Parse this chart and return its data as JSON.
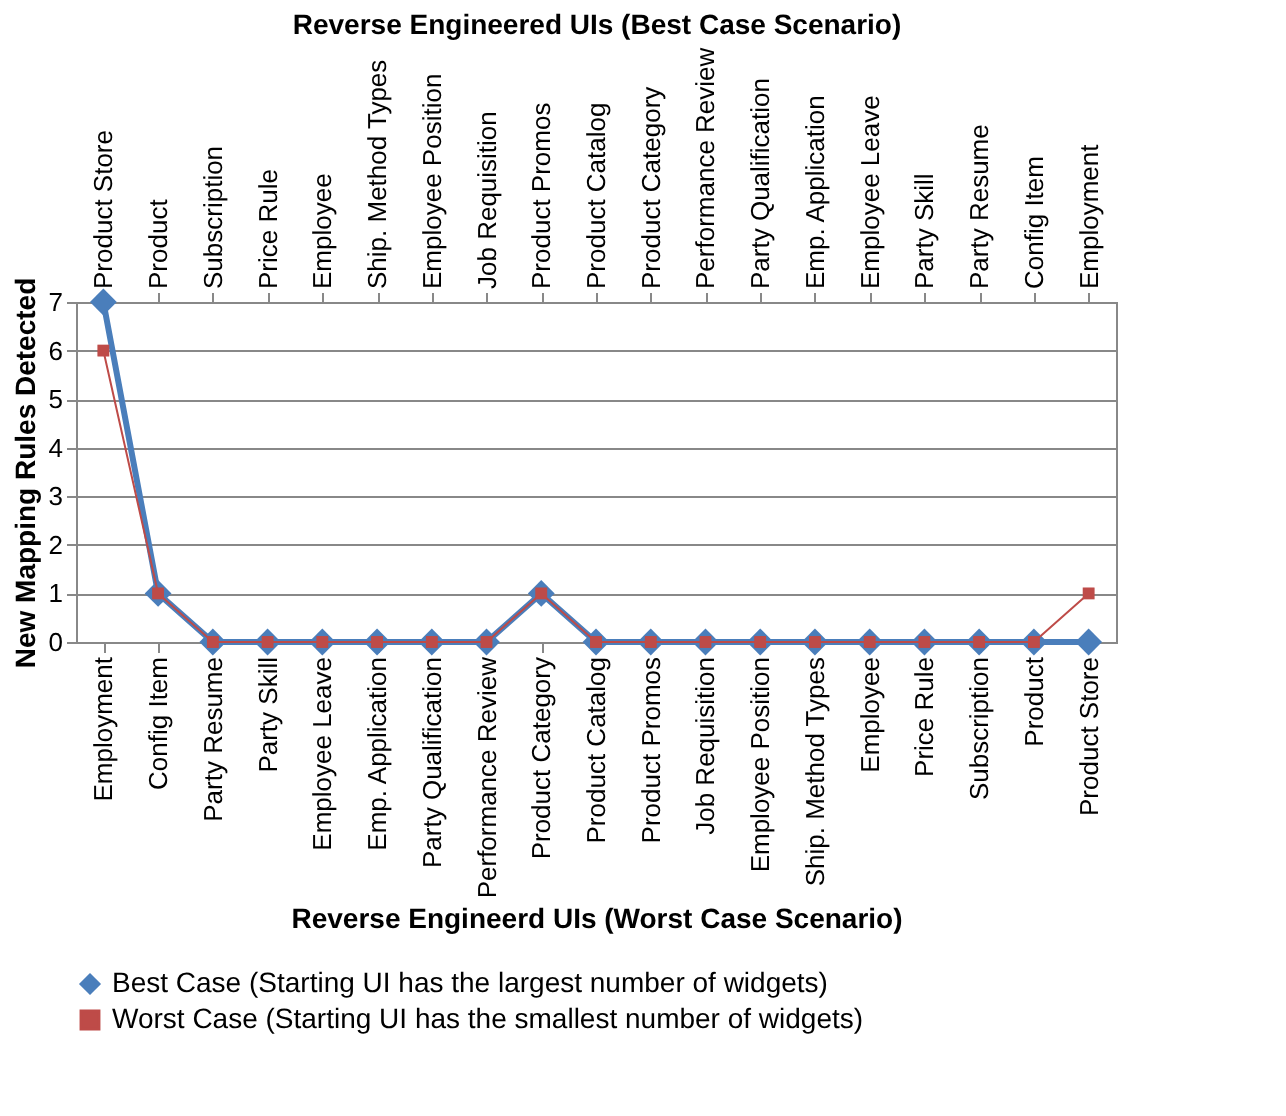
{
  "chart_data": {
    "type": "line",
    "xlabel": "Reverse Engineerd UIs (Worst Case Scenario)",
    "x2label": "Reverse Engineered UIs (Best Case Scenario)",
    "ylabel": "New Mapping Rules Detected",
    "categories": [
      "Employment",
      "Config Item",
      "Party Resume",
      "Party Skill",
      "Employee Leave",
      "Emp. Application",
      "Party Qualification",
      "Performance Review",
      "Product Category",
      "Product Catalog",
      "Product Promos",
      "Job Requisition",
      "Employee Position",
      "Ship. Method Types",
      "Employee",
      "Price Rule",
      "Subscription",
      "Product",
      "Product Store"
    ],
    "annotations": [
      "Product Store",
      "Product",
      "Subscription",
      "Price Rule",
      "Employee",
      "Ship. Method Types",
      "Employee Position",
      "Job Requisition",
      "Product Promos",
      "Product Catalog",
      "Product Category",
      "Performance Review",
      "Party Qualification",
      "Emp. Application",
      "Employee Leave",
      "Party Skill",
      "Party Resume",
      "Config Item",
      "Employment"
    ],
    "series": [
      {
        "name": "Best Case (Starting UI has the largest number of widgets)",
        "color": "#4a7ebb",
        "marker": "diamond",
        "values": [
          7,
          1,
          0,
          0,
          0,
          0,
          0,
          0,
          1,
          0,
          0,
          0,
          0,
          0,
          0,
          0,
          0,
          0,
          0
        ]
      },
      {
        "name": "Worst Case (Starting UI has the smallest number of widgets)",
        "color": "#be4b48",
        "marker": "square",
        "values": [
          6,
          1,
          0,
          0,
          0,
          0,
          0,
          0,
          1,
          0,
          0,
          0,
          0,
          0,
          0,
          0,
          0,
          0,
          1
        ]
      }
    ],
    "ylim": [
      0,
      7
    ],
    "yticks": [
      0,
      1,
      2,
      3,
      4,
      5,
      6,
      7
    ],
    "grid": "y",
    "legend": "bottom"
  }
}
